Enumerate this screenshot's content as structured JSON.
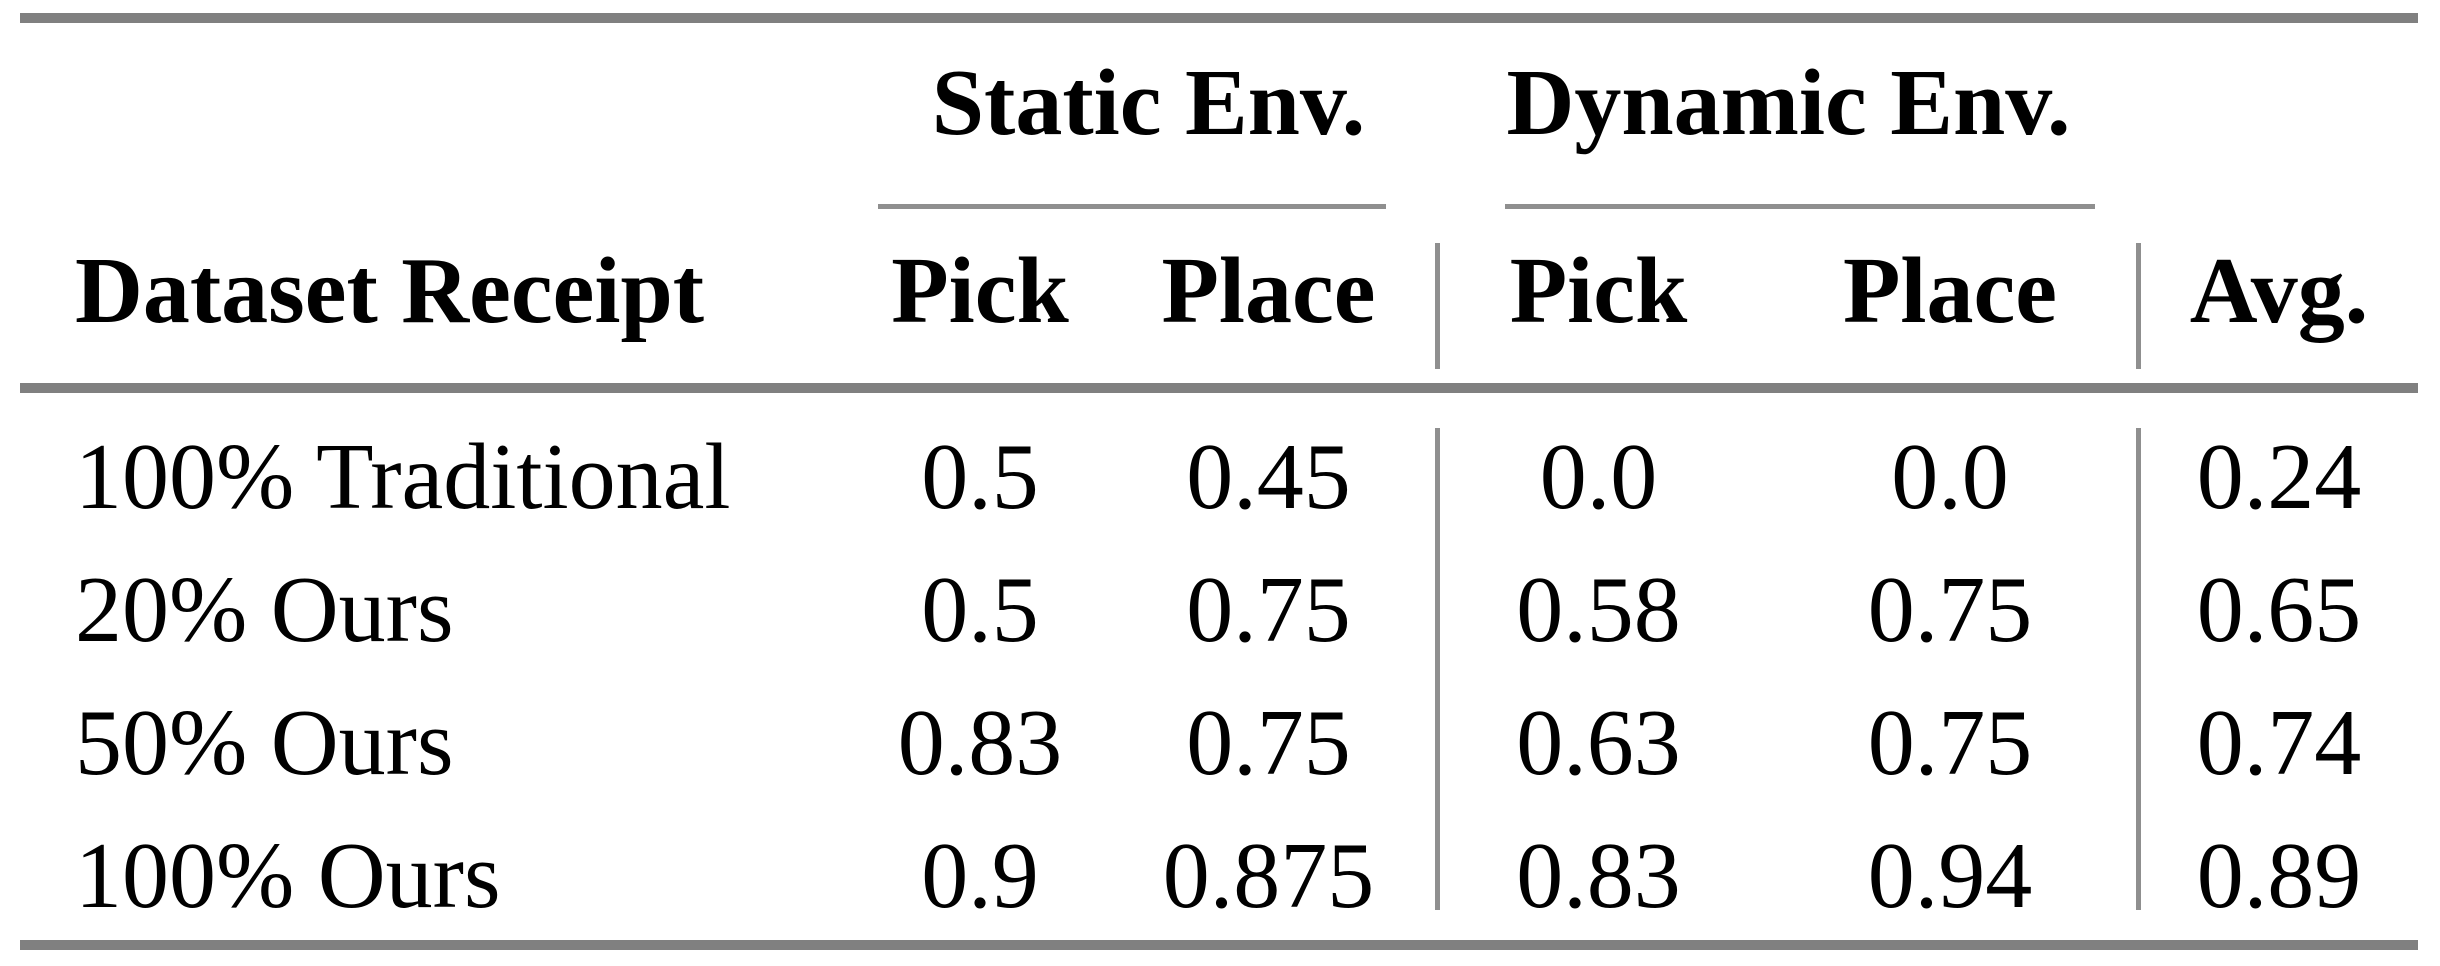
{
  "table": {
    "column_groups": [
      {
        "label": "Static Env."
      },
      {
        "label": "Dynamic Env."
      }
    ],
    "headers": {
      "row_label": "Dataset Receipt",
      "static_pick": "Pick",
      "static_place": "Place",
      "dynamic_pick": "Pick",
      "dynamic_place": "Place",
      "avg": "Avg."
    },
    "rows": [
      {
        "label": "100% Traditional",
        "static_pick": "0.5",
        "static_place": "0.45",
        "dynamic_pick": "0.0",
        "dynamic_place": "0.0",
        "avg": "0.24"
      },
      {
        "label": "20% Ours",
        "static_pick": "0.5",
        "static_place": "0.75",
        "dynamic_pick": "0.58",
        "dynamic_place": "0.75",
        "avg": "0.65"
      },
      {
        "label": "50% Ours",
        "static_pick": "0.83",
        "static_place": "0.75",
        "dynamic_pick": "0.63",
        "dynamic_place": "0.75",
        "avg": "0.74"
      },
      {
        "label": "100% Ours",
        "static_pick": "0.9",
        "static_place": "0.875",
        "dynamic_pick": "0.83",
        "dynamic_place": "0.94",
        "avg": "0.89"
      }
    ],
    "colors": {
      "rule": "#808080",
      "thin_rule": "#8f8f8f",
      "text": "#000000",
      "background": "#ffffff"
    }
  }
}
